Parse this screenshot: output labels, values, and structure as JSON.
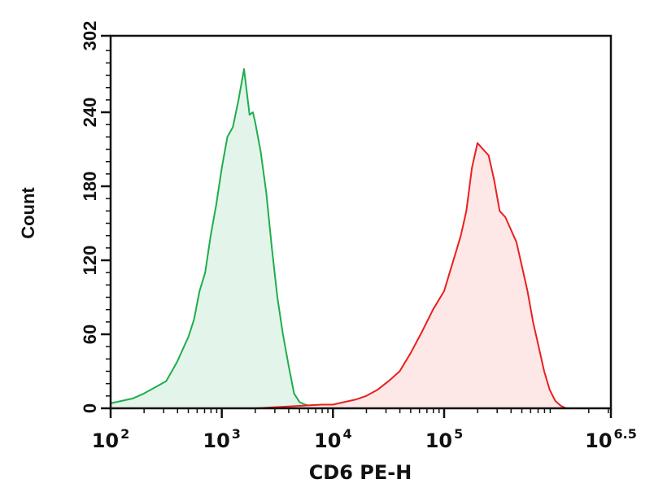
{
  "chart_data": {
    "type": "area",
    "title": "",
    "xlabel": "CD6 PE-H",
    "ylabel": "Count",
    "x_scale": "log",
    "xlim": [
      2,
      6.5
    ],
    "ylim": [
      0,
      302
    ],
    "x_ticks": [
      {
        "base": "10",
        "exp": "2",
        "value": 2
      },
      {
        "base": "10",
        "exp": "3",
        "value": 3
      },
      {
        "base": "10",
        "exp": "4",
        "value": 4
      },
      {
        "base": "10",
        "exp": "5",
        "value": 5
      },
      {
        "base": "10",
        "exp": "6.5",
        "value": 6.5
      }
    ],
    "y_ticks": [
      "0",
      "60",
      "120",
      "180",
      "240",
      "302"
    ],
    "y_tick_values": [
      0,
      60,
      120,
      180,
      240,
      302
    ],
    "grid": false,
    "series": [
      {
        "color": "#1fad4c",
        "fill": "#e3f5ea",
        "x": [
          2.0,
          2.1,
          2.2,
          2.3,
          2.4,
          2.5,
          2.55,
          2.6,
          2.65,
          2.7,
          2.75,
          2.8,
          2.85,
          2.9,
          2.95,
          3.0,
          3.05,
          3.1,
          3.15,
          3.2,
          3.25,
          3.28,
          3.3,
          3.35,
          3.4,
          3.45,
          3.5,
          3.55,
          3.6,
          3.65,
          3.7,
          3.75,
          3.8,
          3.9,
          4.0
        ],
        "y": [
          4,
          6,
          8,
          12,
          17,
          22,
          30,
          38,
          48,
          58,
          72,
          95,
          110,
          140,
          165,
          195,
          220,
          228,
          250,
          275,
          238,
          240,
          232,
          208,
          175,
          130,
          90,
          60,
          35,
          12,
          5,
          3,
          2,
          1,
          0
        ]
      },
      {
        "color": "#e8201f",
        "fill": "#fde7e7",
        "x": [
          3.3,
          3.5,
          3.7,
          3.9,
          4.0,
          4.1,
          4.2,
          4.3,
          4.4,
          4.5,
          4.6,
          4.7,
          4.8,
          4.9,
          5.0,
          5.05,
          5.1,
          5.15,
          5.2,
          5.25,
          5.3,
          5.35,
          5.4,
          5.45,
          5.5,
          5.55,
          5.6,
          5.65,
          5.7,
          5.75,
          5.8,
          5.85,
          5.9,
          5.95,
          6.0,
          6.05,
          6.1
        ],
        "y": [
          0,
          1,
          2,
          3,
          3,
          5,
          7,
          10,
          15,
          22,
          30,
          45,
          62,
          80,
          95,
          110,
          125,
          140,
          160,
          195,
          215,
          210,
          205,
          185,
          160,
          155,
          145,
          135,
          115,
          95,
          70,
          50,
          30,
          15,
          6,
          2,
          0
        ]
      }
    ]
  }
}
